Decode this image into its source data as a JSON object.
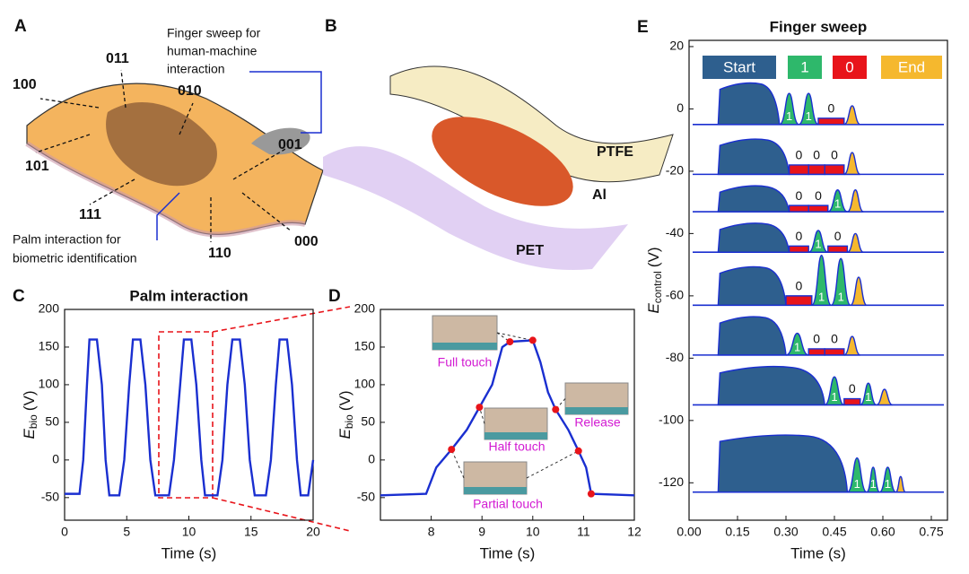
{
  "illustrations": {
    "A": {
      "letter": "A",
      "finger_note": [
        "Finger sweep for",
        "human-machine",
        "interaction"
      ],
      "palm_note": [
        "Palm interaction for",
        "biometric identification"
      ],
      "codes": [
        "100",
        "011",
        "010",
        "101",
        "001",
        "111",
        "110",
        "000"
      ]
    },
    "B": {
      "letter": "B",
      "labels": [
        "PTFE",
        "Al",
        "PET"
      ]
    }
  },
  "chart_data": [
    {
      "type": "line",
      "panel": "C",
      "title": "Palm interaction",
      "xlabel": "Time (s)",
      "ylabel": "E",
      "ylabel_sub": "bio",
      "ylabel_unit": "(V)",
      "color": "#1a2fd0",
      "xlim": [
        0,
        20
      ],
      "ylim": [
        -80,
        200
      ],
      "xticks": [
        0,
        5,
        10,
        15,
        20
      ],
      "yticks": [
        -50,
        0,
        50,
        100,
        150,
        200
      ],
      "x": [
        0,
        1.2,
        1.5,
        1.8,
        2.0,
        2.6,
        3.0,
        3.3,
        3.6,
        4.4,
        4.8,
        5.2,
        5.5,
        6.1,
        6.5,
        6.9,
        7.3,
        8.4,
        8.8,
        9.3,
        9.6,
        10.2,
        10.6,
        11.0,
        11.3,
        12.3,
        12.7,
        13.1,
        13.5,
        14.1,
        14.5,
        14.9,
        15.3,
        16.2,
        16.6,
        17.0,
        17.3,
        17.9,
        18.3,
        18.7,
        19.0,
        19.6,
        20
      ],
      "values": [
        -45,
        -45,
        0,
        100,
        160,
        160,
        100,
        0,
        -47,
        -47,
        0,
        100,
        160,
        160,
        100,
        0,
        -47,
        -47,
        0,
        100,
        160,
        160,
        100,
        0,
        -47,
        -47,
        0,
        100,
        160,
        160,
        100,
        0,
        -47,
        -47,
        0,
        100,
        160,
        160,
        100,
        0,
        -47,
        -47,
        0
      ]
    },
    {
      "type": "line",
      "panel": "D",
      "xlabel": "Time (s)",
      "ylabel": "E",
      "ylabel_sub": "bio",
      "ylabel_unit": "(V)",
      "color": "#1a2fd0",
      "xlim": [
        7,
        12
      ],
      "ylim": [
        -80,
        200
      ],
      "xticks": [
        8,
        9,
        10,
        11,
        12
      ],
      "yticks": [
        -50,
        0,
        50,
        100,
        150,
        200
      ],
      "x": [
        7,
        7.9,
        8.1,
        8.4,
        8.7,
        8.95,
        9.2,
        9.4,
        9.55,
        10.0,
        10.15,
        10.3,
        10.45,
        10.7,
        10.9,
        11.05,
        11.15,
        12
      ],
      "values": [
        -47,
        -45,
        -10,
        14,
        40,
        70,
        100,
        150,
        157,
        159,
        130,
        90,
        67,
        40,
        12,
        -10,
        -45,
        -47
      ],
      "markers": {
        "color": "#e8141a",
        "x": [
          8.4,
          8.95,
          9.55,
          10.0,
          10.45,
          10.9,
          11.15
        ],
        "values": [
          14,
          70,
          157,
          159,
          67,
          12,
          -45
        ]
      },
      "annotations": [
        "Full touch",
        "Half touch",
        "Release",
        "Partial touch"
      ]
    },
    {
      "type": "area",
      "panel": "E",
      "title": "Finger sweep",
      "xlabel": "Time (s)",
      "ylabel": "E",
      "ylabel_sub": "control",
      "ylabel_unit": "(V)",
      "line_color": "#1a2fd0",
      "xlim": [
        0,
        0.8
      ],
      "ylim": [
        -132,
        22
      ],
      "xticks": [
        {
          "value": 0,
          "label": "0.00"
        },
        0.15,
        {
          "value": 0.3,
          "label": "0.30"
        },
        0.45,
        {
          "value": 0.6,
          "label": "0.60"
        },
        0.75
      ],
      "yticks": [
        20,
        0,
        -20,
        -40,
        -60,
        -80,
        -100,
        -120
      ],
      "legend": [
        {
          "name": "Start",
          "color": "#2e5f8e"
        },
        {
          "name": "1",
          "color": "#2eb86b"
        },
        {
          "name": "0",
          "color": "#e8141a"
        },
        {
          "name": "End",
          "color": "#f5b82e"
        }
      ],
      "traces": [
        {
          "baseline": -5,
          "segments": [
            {
              "kind": 0,
              "x": [
                0.09,
                0.28
              ],
              "peak": 8
            },
            {
              "kind": 1,
              "x": [
                0.28,
                0.34
              ],
              "peak": 5,
              "label": "1"
            },
            {
              "kind": 1,
              "x": [
                0.34,
                0.4
              ],
              "peak": 5,
              "label": "1"
            },
            {
              "kind": 2,
              "x": [
                0.4,
                0.48
              ],
              "peak": -3,
              "label": "0"
            },
            {
              "kind": 3,
              "x": [
                0.48,
                0.53
              ],
              "peak": 1
            }
          ]
        },
        {
          "baseline": -21,
          "segments": [
            {
              "kind": 0,
              "x": [
                0.09,
                0.31
              ],
              "peak": -10
            },
            {
              "kind": 2,
              "x": [
                0.31,
                0.37
              ],
              "peak": -18,
              "label": "0"
            },
            {
              "kind": 2,
              "x": [
                0.37,
                0.42
              ],
              "peak": -18,
              "label": "0"
            },
            {
              "kind": 2,
              "x": [
                0.42,
                0.48
              ],
              "peak": -18,
              "label": "0"
            },
            {
              "kind": 3,
              "x": [
                0.48,
                0.53
              ],
              "peak": -14
            }
          ]
        },
        {
          "baseline": -33,
          "segments": [
            {
              "kind": 0,
              "x": [
                0.09,
                0.31
              ],
              "peak": -25
            },
            {
              "kind": 2,
              "x": [
                0.31,
                0.37
              ],
              "peak": -31,
              "label": "0"
            },
            {
              "kind": 2,
              "x": [
                0.37,
                0.43
              ],
              "peak": -31,
              "label": "0"
            },
            {
              "kind": 1,
              "x": [
                0.43,
                0.49
              ],
              "peak": -26,
              "label": "1"
            },
            {
              "kind": 3,
              "x": [
                0.49,
                0.54
              ],
              "peak": -26
            }
          ]
        },
        {
          "baseline": -46,
          "segments": [
            {
              "kind": 0,
              "x": [
                0.09,
                0.31
              ],
              "peak": -37
            },
            {
              "kind": 2,
              "x": [
                0.31,
                0.37
              ],
              "peak": -44,
              "label": "0"
            },
            {
              "kind": 1,
              "x": [
                0.37,
                0.43
              ],
              "peak": -39,
              "label": "1"
            },
            {
              "kind": 2,
              "x": [
                0.43,
                0.49
              ],
              "peak": -44,
              "label": "0"
            },
            {
              "kind": 3,
              "x": [
                0.49,
                0.54
              ],
              "peak": -40
            }
          ]
        },
        {
          "baseline": -63,
          "segments": [
            {
              "kind": 0,
              "x": [
                0.09,
                0.3
              ],
              "peak": -51
            },
            {
              "kind": 2,
              "x": [
                0.3,
                0.38
              ],
              "peak": -60,
              "label": "0"
            },
            {
              "kind": 1,
              "x": [
                0.38,
                0.44
              ],
              "peak": -47,
              "label": "1"
            },
            {
              "kind": 1,
              "x": [
                0.44,
                0.5
              ],
              "peak": -48,
              "label": "1"
            },
            {
              "kind": 3,
              "x": [
                0.5,
                0.55
              ],
              "peak": -54
            }
          ]
        },
        {
          "baseline": -79,
          "segments": [
            {
              "kind": 0,
              "x": [
                0.09,
                0.3
              ],
              "peak": -67
            },
            {
              "kind": 1,
              "x": [
                0.3,
                0.37
              ],
              "peak": -72,
              "label": "1"
            },
            {
              "kind": 2,
              "x": [
                0.37,
                0.42
              ],
              "peak": -77,
              "label": "0"
            },
            {
              "kind": 2,
              "x": [
                0.42,
                0.48
              ],
              "peak": -77,
              "label": "0"
            },
            {
              "kind": 3,
              "x": [
                0.48,
                0.53
              ],
              "peak": -73
            }
          ]
        },
        {
          "baseline": -95,
          "segments": [
            {
              "kind": 0,
              "x": [
                0.09,
                0.42
              ],
              "peak": -83
            },
            {
              "kind": 1,
              "x": [
                0.42,
                0.48
              ],
              "peak": -86,
              "label": "1"
            },
            {
              "kind": 2,
              "x": [
                0.48,
                0.53
              ],
              "peak": -93,
              "label": "0"
            },
            {
              "kind": 1,
              "x": [
                0.53,
                0.58
              ],
              "peak": -88,
              "label": "1"
            },
            {
              "kind": 3,
              "x": [
                0.58,
                0.63
              ],
              "peak": -90
            }
          ]
        },
        {
          "baseline": -123,
          "segments": [
            {
              "kind": 0,
              "x": [
                0.09,
                0.49
              ],
              "peak": -105
            },
            {
              "kind": 1,
              "x": [
                0.49,
                0.55
              ],
              "peak": -112,
              "label": "1"
            },
            {
              "kind": 1,
              "x": [
                0.55,
                0.59
              ],
              "peak": -115,
              "label": "1"
            },
            {
              "kind": 1,
              "x": [
                0.59,
                0.64
              ],
              "peak": -115,
              "label": "1"
            },
            {
              "kind": 3,
              "x": [
                0.64,
                0.67
              ],
              "peak": -118
            }
          ]
        }
      ]
    }
  ]
}
